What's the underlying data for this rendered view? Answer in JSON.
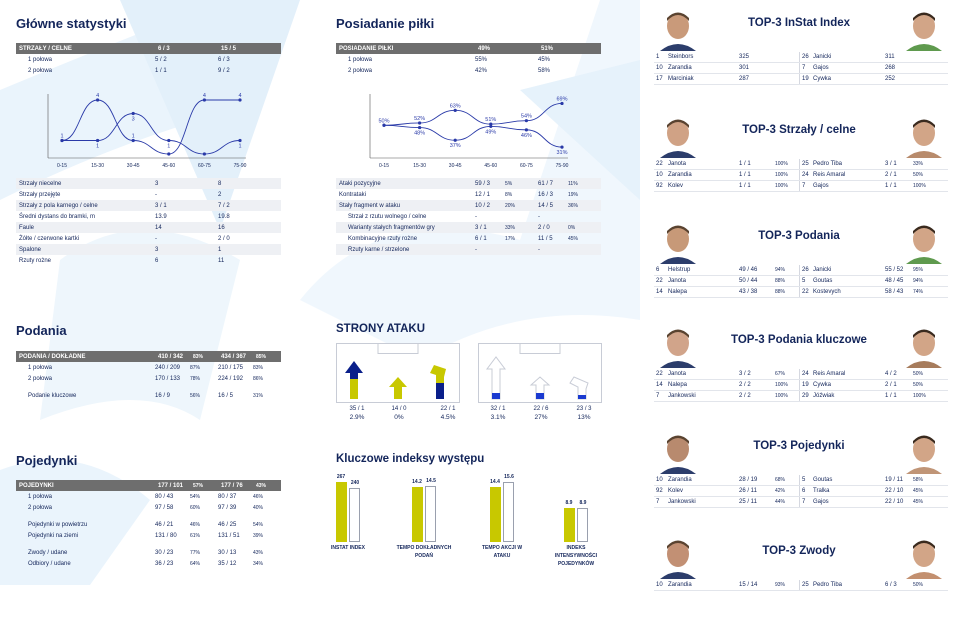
{
  "main_stats": {
    "title": "Główne statystyki",
    "header": {
      "label": "STRZAŁY / CELNE",
      "a": "6 / 3",
      "b": "15 / 5"
    },
    "rows": [
      {
        "label": "1 połowa",
        "a": "5 / 2",
        "b": "6 / 3"
      },
      {
        "label": "2 połowa",
        "a": "1 / 1",
        "b": "9 / 2"
      }
    ],
    "chart": {
      "x_labels": [
        "0-15",
        "15-30",
        "30-45",
        "45-60",
        "60-75",
        "75-90"
      ],
      "series_a": [
        1,
        4,
        1,
        0,
        4,
        4
      ],
      "series_b": [
        1,
        1,
        3,
        1,
        0,
        1
      ],
      "point_labels_a": [
        "1",
        "4",
        "1",
        "",
        "4",
        "4"
      ],
      "point_labels_b": [
        "",
        "1",
        "3",
        "1",
        "",
        "1"
      ]
    },
    "rows2": [
      {
        "label": "Strzały niecelne",
        "a": "3",
        "b": "8"
      },
      {
        "label": "Strzały przejęte",
        "a": "-",
        "b": "2"
      },
      {
        "label": "Strzały z pola karnego / celne",
        "a": "3 / 1",
        "b": "7 / 2"
      },
      {
        "label": "Średni dystans do bramki, m",
        "a": "13.9",
        "b": "19.8"
      },
      {
        "label": "Faule",
        "a": "14",
        "b": "16"
      },
      {
        "label": "Żółte / czerwone kartki",
        "a": "-",
        "b": "2 / 0"
      },
      {
        "label": "Spalone",
        "a": "3",
        "b": "1"
      },
      {
        "label": "Rzuty rożne",
        "a": "6",
        "b": "11"
      }
    ]
  },
  "possession": {
    "title": "Posiadanie piłki",
    "header": {
      "label": "POSIADANIE PIŁKI",
      "a": "49%",
      "b": "51%"
    },
    "rows": [
      {
        "label": "1 połowa",
        "a": "55%",
        "b": "45%"
      },
      {
        "label": "2 połowa",
        "a": "42%",
        "b": "58%"
      }
    ],
    "chart": {
      "x_labels": [
        "0-15",
        "15-30",
        "30-45",
        "45-60",
        "60-75",
        "75-90"
      ],
      "series_a": [
        50,
        52,
        63,
        51,
        54,
        69
      ],
      "series_b": [
        50,
        48,
        37,
        49,
        46,
        31
      ],
      "labels_a": [
        "50%",
        "52%",
        "63%",
        "51%",
        "54%",
        "69%"
      ],
      "labels_b": [
        "",
        "48%",
        "37%",
        "49%",
        "46%",
        "31%"
      ]
    },
    "rows2": [
      {
        "label": "Ataki pozycyjne",
        "a": "59 / 3",
        "ap": "5%",
        "b": "61 / 7",
        "bp": "11%"
      },
      {
        "label": "Kontrataki",
        "a": "12 / 1",
        "ap": "8%",
        "b": "16 / 3",
        "bp": "19%"
      },
      {
        "label": "Stały fragment w ataku",
        "a": "10 / 2",
        "ap": "20%",
        "b": "14 / 5",
        "bp": "36%"
      },
      {
        "label": "Strzał z rzutu wolnego / celne",
        "a": "-",
        "ap": "",
        "b": "-",
        "bp": ""
      },
      {
        "label": "Warianty stałych fragmentów gry",
        "a": "3 / 1",
        "ap": "33%",
        "b": "2 / 0",
        "bp": "0%"
      },
      {
        "label": "Kombinacyjne rzuty rożne",
        "a": "6 / 1",
        "ap": "17%",
        "b": "11 / 5",
        "bp": "45%"
      },
      {
        "label": "Rzuty karne / strzelone",
        "a": "-",
        "ap": "",
        "b": "-",
        "bp": ""
      }
    ]
  },
  "passes": {
    "title": "Podania",
    "header": {
      "label": "PODANIA / DOKŁADNE",
      "a": "410 / 342",
      "ap": "83%",
      "b": "434 / 367",
      "bp": "85%"
    },
    "rows": [
      {
        "label": "1 połowa",
        "a": "240 / 209",
        "ap": "87%",
        "b": "210 / 175",
        "bp": "83%"
      },
      {
        "label": "2 połowa",
        "a": "170 / 133",
        "ap": "78%",
        "b": "224 / 192",
        "bp": "86%"
      },
      {
        "label": "Podanie kluczowe",
        "a": "16 / 9",
        "ap": "56%",
        "b": "16 / 5",
        "bp": "31%"
      }
    ]
  },
  "duels": {
    "title": "Pojedynki",
    "header": {
      "label": "POJEDYNKI",
      "a": "177 / 101",
      "ap": "57%",
      "b": "177 / 76",
      "bp": "43%"
    },
    "rows": [
      {
        "label": "1 połowa",
        "a": "80 / 43",
        "ap": "54%",
        "b": "80 / 37",
        "bp": "46%"
      },
      {
        "label": "2 połowa",
        "a": "97 / 58",
        "ap": "60%",
        "b": "97 / 39",
        "bp": "40%"
      },
      {
        "label": "Pojedynki w powietrzu",
        "a": "46 / 21",
        "ap": "46%",
        "b": "46 / 25",
        "bp": "54%"
      },
      {
        "label": "Pojedynki na ziemi",
        "a": "131 / 80",
        "ap": "61%",
        "b": "131 / 51",
        "bp": "39%"
      },
      {
        "label": "Zwody / udane",
        "a": "30 / 23",
        "ap": "77%",
        "b": "30 / 13",
        "bp": "43%"
      },
      {
        "label": "Odbiory / udane",
        "a": "36 / 23",
        "ap": "64%",
        "b": "35 / 12",
        "bp": "34%"
      }
    ]
  },
  "attack_sides": {
    "title": "STRONY ATAKU",
    "team_a": [
      {
        "value": "35 / 1",
        "pct": "2.9%"
      },
      {
        "value": "14 / 0",
        "pct": "0%"
      },
      {
        "value": "22 / 1",
        "pct": "4.5%"
      }
    ],
    "team_b": [
      {
        "value": "32 / 1",
        "pct": "3.1%"
      },
      {
        "value": "22 / 6",
        "pct": "27%"
      },
      {
        "value": "23 / 3",
        "pct": "13%"
      }
    ]
  },
  "key_indices": {
    "title": "Kluczowe indeksy występu",
    "items": [
      {
        "label": "INSTAT INDEX",
        "a": "267",
        "b": "240",
        "a_val": 267,
        "b_val": 240,
        "max": 267
      },
      {
        "label": "TEMPO DOKŁADNYCH PODAŃ",
        "a": "14.2",
        "b": "14.5",
        "a_val": 14.2,
        "b_val": 14.5,
        "max": 15.6
      },
      {
        "label": "TEMPO AKCJI W ATAKU",
        "a": "14.4",
        "b": "15.6",
        "a_val": 14.4,
        "b_val": 15.6,
        "max": 15.6
      },
      {
        "label": "INDEKS INTENSYWNOŚCI POJEDYNKÓW",
        "a": "8.9",
        "b": "8.9",
        "a_val": 8.9,
        "b_val": 8.9,
        "max": 15.6
      }
    ]
  },
  "top3": [
    {
      "title": "TOP-3 InStat Index",
      "rows": [
        {
          "n": "1",
          "name": "Steinbors",
          "v": "325",
          "p": "",
          "n2": "26",
          "name2": "Janicki",
          "v2": "311",
          "p2": ""
        },
        {
          "n": "10",
          "name": "Zarandia",
          "v": "301",
          "p": "",
          "n2": "7",
          "name2": "Gajos",
          "v2": "268",
          "p2": ""
        },
        {
          "n": "17",
          "name": "Marciniak",
          "v": "287",
          "p": "",
          "n2": "19",
          "name2": "Cywka",
          "v2": "252",
          "p2": ""
        }
      ]
    },
    {
      "title": "TOP-3 Strzały / celne",
      "rows": [
        {
          "n": "22",
          "name": "Janota",
          "v": "1 / 1",
          "p": "100%",
          "n2": "25",
          "name2": "Pedro Tiba",
          "v2": "3 / 1",
          "p2": "33%"
        },
        {
          "n": "10",
          "name": "Zarandia",
          "v": "1 / 1",
          "p": "100%",
          "n2": "24",
          "name2": "Reis Amaral",
          "v2": "2 / 1",
          "p2": "50%"
        },
        {
          "n": "92",
          "name": "Kolev",
          "v": "1 / 1",
          "p": "100%",
          "n2": "7",
          "name2": "Gajos",
          "v2": "1 / 1",
          "p2": "100%"
        }
      ]
    },
    {
      "title": "TOP-3 Podania",
      "rows": [
        {
          "n": "6",
          "name": "Helstrup",
          "v": "49 / 46",
          "p": "94%",
          "n2": "26",
          "name2": "Janicki",
          "v2": "55 / 52",
          "p2": "95%"
        },
        {
          "n": "22",
          "name": "Janota",
          "v": "50 / 44",
          "p": "88%",
          "n2": "5",
          "name2": "Goutas",
          "v2": "48 / 45",
          "p2": "94%"
        },
        {
          "n": "14",
          "name": "Nalepa",
          "v": "43 / 38",
          "p": "88%",
          "n2": "22",
          "name2": "Kostevych",
          "v2": "58 / 43",
          "p2": "74%"
        }
      ]
    },
    {
      "title": "TOP-3 Podania kluczowe",
      "rows": [
        {
          "n": "22",
          "name": "Janota",
          "v": "3 / 2",
          "p": "67%",
          "n2": "24",
          "name2": "Reis Amaral",
          "v2": "4 / 2",
          "p2": "50%"
        },
        {
          "n": "14",
          "name": "Nalepa",
          "v": "2 / 2",
          "p": "100%",
          "n2": "19",
          "name2": "Cywka",
          "v2": "2 / 1",
          "p2": "50%"
        },
        {
          "n": "7",
          "name": "Jankowski",
          "v": "2 / 2",
          "p": "100%",
          "n2": "29",
          "name2": "Jóźwiak",
          "v2": "1 / 1",
          "p2": "100%"
        }
      ]
    },
    {
      "title": "TOP-3 Pojedynki",
      "rows": [
        {
          "n": "10",
          "name": "Zarandia",
          "v": "28 / 19",
          "p": "68%",
          "n2": "5",
          "name2": "Goutas",
          "v2": "19 / 11",
          "p2": "58%"
        },
        {
          "n": "92",
          "name": "Kolev",
          "v": "26 / 11",
          "p": "42%",
          "n2": "6",
          "name2": "Tralka",
          "v2": "22 / 10",
          "p2": "45%"
        },
        {
          "n": "7",
          "name": "Jankowski",
          "v": "25 / 11",
          "p": "44%",
          "n2": "7",
          "name2": "Gajos",
          "v2": "22 / 10",
          "p2": "45%"
        }
      ]
    },
    {
      "title": "TOP-3 Zwody",
      "rows": [
        {
          "n": "10",
          "name": "Zarandia",
          "v": "15 / 14",
          "p": "93%",
          "n2": "25",
          "name2": "Pedro Tiba",
          "v2": "6 / 3",
          "p2": "50%"
        }
      ]
    }
  ],
  "colors": {
    "navy": "#13255a",
    "chart_line": "#2a3aa8",
    "team_a_bar": "#c8c800",
    "team_a_arrow": "#0a1f8a",
    "team_b_arrow": "#1a5fd0",
    "header_grey": "#6e6e6e",
    "bg_accent": "#e6f2fb"
  }
}
